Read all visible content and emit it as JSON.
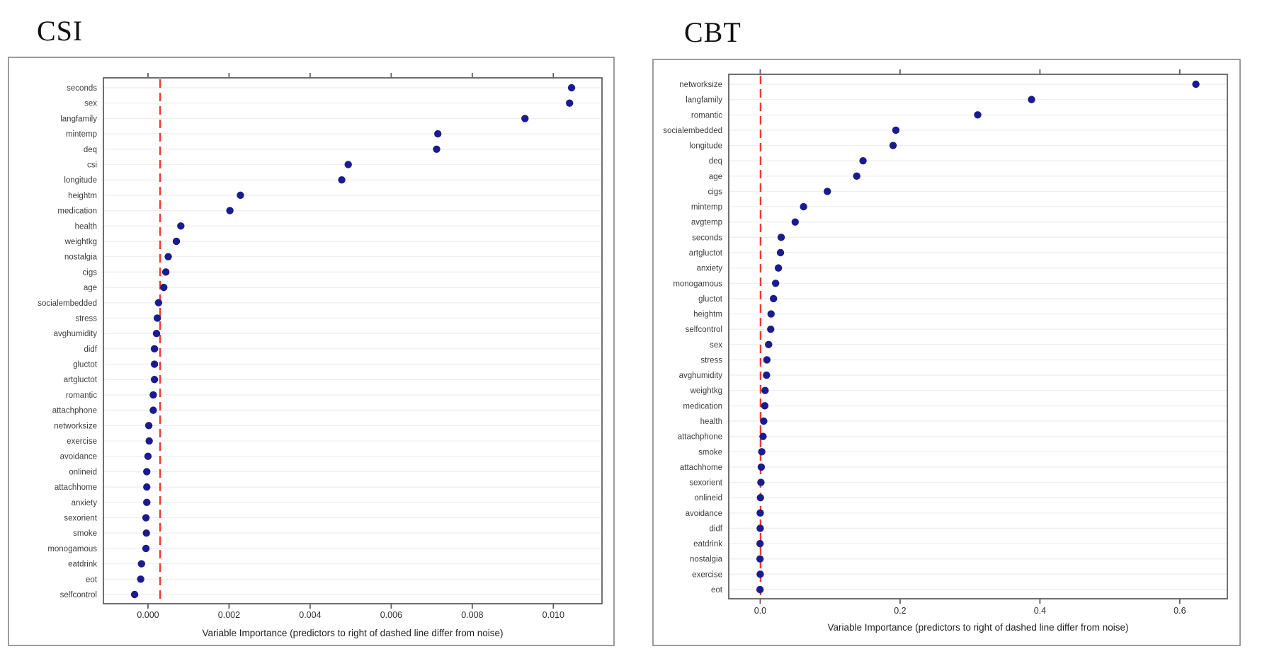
{
  "page": {
    "background": "#ffffff"
  },
  "chart_data": [
    {
      "id": "csi",
      "type": "scatter",
      "title": "CSI",
      "xlabel": "Variable Importance (predictors to right of dashed line differ from noise)",
      "categories": [
        "seconds",
        "sex",
        "langfamily",
        "mintemp",
        "deq",
        "csi",
        "longitude",
        "heightm",
        "medication",
        "health",
        "weightkg",
        "nostalgia",
        "cigs",
        "age",
        "socialembedded",
        "stress",
        "avghumidity",
        "didf",
        "gluctot",
        "artgluctot",
        "romantic",
        "attachphone",
        "networksize",
        "exercise",
        "avoidance",
        "onlineid",
        "attachhome",
        "anxiety",
        "sexorient",
        "smoke",
        "monogamous",
        "eatdrink",
        "eot",
        "selfcontrol"
      ],
      "values": [
        0.01045,
        0.0104,
        0.0093,
        0.00715,
        0.00712,
        0.00494,
        0.00478,
        0.00228,
        0.00202,
        0.00081,
        0.0007,
        0.0005,
        0.00044,
        0.00039,
        0.00026,
        0.00023,
        0.00021,
        0.00016,
        0.00016,
        0.00016,
        0.00013,
        0.00013,
        2e-05,
        3e-05,
        0.0,
        -3e-05,
        -3e-05,
        -3e-05,
        -5e-05,
        -4e-05,
        -5e-05,
        -0.00016,
        -0.00018,
        -0.00033
      ],
      "threshold_line": 0.0003,
      "xlim": [
        -0.0011,
        0.0112
      ],
      "xticks": [
        0.0,
        0.002,
        0.004,
        0.006,
        0.008,
        0.01
      ],
      "xtick_labels": [
        "0.000",
        "0.002",
        "0.004",
        "0.006",
        "0.008",
        "0.010"
      ],
      "grid": true,
      "legend": "none",
      "point_color": "#1b1b8e",
      "threshold_color": "#f2372e"
    },
    {
      "id": "cbt",
      "type": "scatter",
      "title": "CBT",
      "xlabel": "Variable Importance (predictors to right of dashed line differ from noise)",
      "categories": [
        "networksize",
        "langfamily",
        "romantic",
        "socialembedded",
        "longitude",
        "deq",
        "age",
        "cigs",
        "mintemp",
        "avgtemp",
        "seconds",
        "artgluctot",
        "anxiety",
        "monogamous",
        "gluctot",
        "heightm",
        "selfcontrol",
        "sex",
        "stress",
        "avghumidity",
        "weightkg",
        "medication",
        "health",
        "attachphone",
        "smoke",
        "attachhome",
        "sexorient",
        "onlineid",
        "avoidance",
        "didf",
        "eatdrink",
        "nostalgia",
        "exercise",
        "eot"
      ],
      "values": [
        0.623,
        0.388,
        0.311,
        0.194,
        0.19,
        0.147,
        0.138,
        0.096,
        0.062,
        0.05,
        0.03,
        0.029,
        0.026,
        0.022,
        0.019,
        0.0155,
        0.015,
        0.012,
        0.0095,
        0.009,
        0.007,
        0.0065,
        0.005,
        0.004,
        0.0022,
        0.0015,
        0.001,
        0.0003,
        0.0,
        0.0,
        -0.0002,
        -0.0003,
        0.0,
        -0.0003
      ],
      "threshold_line": 0.0005,
      "xlim": [
        -0.045,
        0.668
      ],
      "xticks": [
        0.0,
        0.2,
        0.4,
        0.6
      ],
      "xtick_labels": [
        "0.0",
        "0.2",
        "0.4",
        "0.6"
      ],
      "grid": true,
      "legend": "none",
      "point_color": "#1b1b8e",
      "threshold_color": "#f2372e"
    }
  ]
}
